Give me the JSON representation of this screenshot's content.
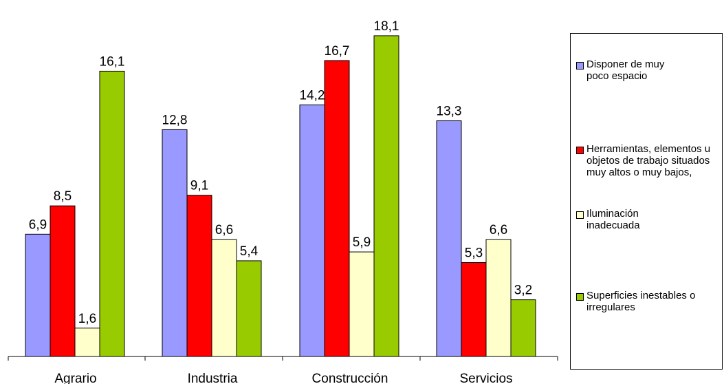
{
  "chart_data": {
    "type": "bar",
    "categories": [
      "Agrario",
      "Industria",
      "Construcción",
      "Servicios"
    ],
    "series": [
      {
        "name": "Disponer de muy poco espacio",
        "color": "#9999ff",
        "values": [
          6.9,
          12.8,
          14.2,
          13.3
        ],
        "labels": [
          "6,9",
          "12,8",
          "14,2",
          "13,3"
        ]
      },
      {
        "name": "Herramientas, elementos u objetos de trabajo situados muy altos o muy bajos,",
        "color": "#ff0000",
        "values": [
          8.5,
          9.1,
          16.7,
          5.3
        ],
        "labels": [
          "8,5",
          "9,1",
          "16,7",
          "5,3"
        ]
      },
      {
        "name": "Iluminación inadecuada",
        "color": "#ffffcc",
        "values": [
          1.6,
          6.6,
          5.9,
          6.6
        ],
        "labels": [
          "1,6",
          "6,6",
          "5,9",
          "6,6"
        ]
      },
      {
        "name": "Superficies inestables o irregulares",
        "color": "#99cc00",
        "values": [
          16.1,
          5.4,
          18.1,
          3.2
        ],
        "labels": [
          "16,1",
          "5,4",
          "18,1",
          "3,2"
        ]
      }
    ],
    "title": "",
    "xlabel": "",
    "ylabel": "",
    "ylim": [
      0,
      20
    ],
    "grid": false,
    "legend_position": "right"
  },
  "legend": {
    "items": [
      {
        "text": "Disponer de muy poco espacio",
        "color": "#9999ff"
      },
      {
        "text": "Herramientas, elementos u objetos de trabajo situados muy altos o muy bajos,",
        "color": "#ff0000"
      },
      {
        "text": "Iluminación inadecuada",
        "color": "#ffffcc"
      },
      {
        "text": "Superficies inestables o irregulares",
        "color": "#99cc00"
      }
    ]
  }
}
